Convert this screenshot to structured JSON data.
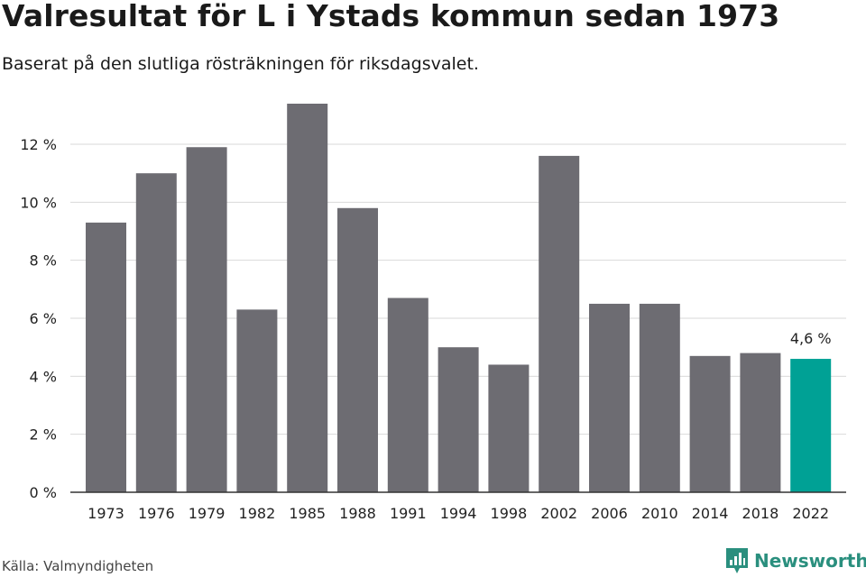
{
  "header": {
    "title": "Valresultat för L i Ystads kommun sedan 1973",
    "subtitle": "Baserat på den slutliga rösträkningen för riksdagsvalet."
  },
  "footer": {
    "source": "Källa: Valmyndigheten",
    "brand": "Newsworthy"
  },
  "colors": {
    "bar": "#6d6c72",
    "highlight": "#00a195",
    "grid": "#d9d9d9",
    "axis": "#333333",
    "brand": "#2a8f7e"
  },
  "icons": {
    "brand_logo": "newsworthy-logo-icon"
  },
  "chart_data": {
    "type": "bar",
    "title": "Valresultat för L i Ystads kommun sedan 1973",
    "subtitle": "Baserat på den slutliga rösträkningen för riksdagsvalet.",
    "xlabel": "",
    "ylabel": "",
    "categories": [
      "1973",
      "1976",
      "1979",
      "1982",
      "1985",
      "1988",
      "1991",
      "1994",
      "1998",
      "2002",
      "2006",
      "2010",
      "2014",
      "2018",
      "2022"
    ],
    "values": [
      9.3,
      11.0,
      11.9,
      6.3,
      13.4,
      9.8,
      6.7,
      5.0,
      4.4,
      11.6,
      6.5,
      6.5,
      4.7,
      4.8,
      4.6
    ],
    "ylim": [
      0,
      13.4
    ],
    "yticks": [
      0,
      2,
      4,
      6,
      8,
      10,
      12
    ],
    "ytick_labels": [
      "0 %",
      "2 %",
      "4 %",
      "6 %",
      "8 %",
      "10 %",
      "12 %"
    ],
    "highlight_index": 14,
    "data_labels": [
      {
        "index": 14,
        "text": "4,6 %"
      }
    ],
    "grid": true,
    "legend": "none"
  }
}
